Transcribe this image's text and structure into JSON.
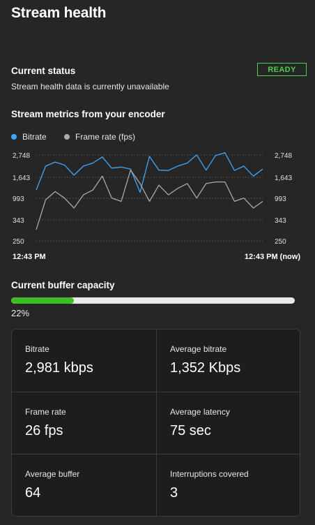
{
  "page": {
    "title": "Stream health"
  },
  "status": {
    "heading": "Current status",
    "badge": "READY",
    "message": "Stream health data is currently unavailable"
  },
  "metrics": {
    "heading": "Stream metrics from your encoder",
    "legend": [
      {
        "label": "Bitrate",
        "color": "#3ea6ff"
      },
      {
        "label": "Frame rate (fps)",
        "color": "#aaaaaa"
      }
    ],
    "time_start": "12:43 PM",
    "time_end": "12:43 PM (now)"
  },
  "chart_data": {
    "type": "line",
    "title": "",
    "xlabel": "",
    "ylabel": "",
    "y_ticks": [
      "2,748",
      "1,643",
      "993",
      "343",
      "250"
    ],
    "y_tick_values": [
      2748,
      1643,
      993,
      343,
      250
    ],
    "x_labels": [
      "12:43 PM",
      "12:43 PM (now)"
    ],
    "grid": true,
    "legend_position": "top-left",
    "series": [
      {
        "name": "Bitrate",
        "color": "#3ea6ff",
        "values": [
          1250,
          2200,
          2400,
          2250,
          1750,
          2200,
          2350,
          2650,
          2100,
          2150,
          2050,
          1180,
          2680,
          2000,
          1980,
          2200,
          2350,
          2750,
          2000,
          2720,
          2860,
          1980,
          2200,
          1700,
          2050
        ]
      },
      {
        "name": "Frame rate (fps)",
        "color": "#aaaaaa",
        "values": [
          300,
          950,
          1200,
          1000,
          700,
          1100,
          1250,
          1700,
          1000,
          900,
          2000,
          1450,
          900,
          1400,
          1100,
          1300,
          1450,
          1000,
          1450,
          1500,
          1500,
          900,
          1000,
          700,
          900
        ]
      }
    ]
  },
  "buffer": {
    "heading": "Current buffer capacity",
    "percent": 22,
    "percent_label": "22%",
    "fill_color": "#3fbd26"
  },
  "stats": [
    {
      "label": "Bitrate",
      "value": "2,981 kbps"
    },
    {
      "label": "Average bitrate",
      "value": "1,352 Kbps"
    },
    {
      "label": "Frame rate",
      "value": "26 fps"
    },
    {
      "label": "Average latency",
      "value": "75 sec"
    },
    {
      "label": "Average buffer",
      "value": "64"
    },
    {
      "label": "Interruptions covered",
      "value": "3"
    }
  ]
}
